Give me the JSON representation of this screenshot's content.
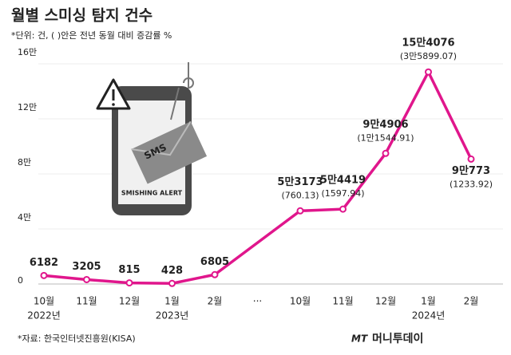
{
  "chart_data": {
    "type": "line",
    "title": "월별 스미싱 탐지 건수",
    "subtitle": "*단위: 건, ( )안은 전년 동월 대비 증감률 %",
    "categories": [
      "10월",
      "11월",
      "12월",
      "1월",
      "2월",
      "10월",
      "11월",
      "12월",
      "1월",
      "2월"
    ],
    "years": [
      "2022년",
      null,
      null,
      "2023년",
      null,
      null,
      null,
      null,
      "2024년",
      null
    ],
    "gap_label": "···",
    "values": [
      6182,
      3205,
      815,
      428,
      6805,
      53173,
      54419,
      94906,
      154076,
      90773
    ],
    "value_labels": [
      "6182",
      "3205",
      "815",
      "428",
      "6805",
      "5만3173",
      "5만4419",
      "9만4906",
      "15만4076",
      "9만773"
    ],
    "change_labels": [
      null,
      null,
      null,
      null,
      null,
      "(760.13)",
      "(1597.94)",
      "(1만1544.91)",
      "(3만5899.07)",
      "(1233.92)"
    ],
    "color": "#e0168c",
    "ylim": [
      0,
      160000
    ],
    "yticks": [
      0,
      {
        "value": 40000,
        "label": "4만"
      },
      {
        "value": 80000,
        "label": "8만"
      },
      {
        "value": 120000,
        "label": "12만"
      },
      {
        "value": 160000,
        "label": "16만"
      }
    ],
    "grid": true,
    "source": "*자료: 한국인터넷진흥원(KISA)"
  },
  "illustration": {
    "envelope": "SMS",
    "screen": "SMISHING ALERT"
  },
  "logo": {
    "mark": "MT",
    "name": "머니투데이"
  }
}
